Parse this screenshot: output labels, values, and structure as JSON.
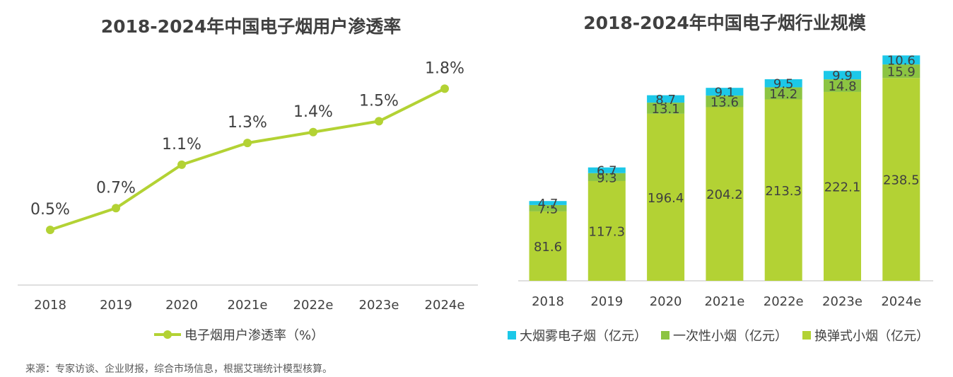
{
  "source_note": "来源：专家访谈、企业财报，综合市场信息，根据艾瑞统计模型核算。",
  "chart_data": [
    {
      "type": "line",
      "title": "2018-2024年中国电子烟用户渗透率",
      "categories": [
        "2018",
        "2019",
        "2020",
        "2021e",
        "2022e",
        "2023e",
        "2024e"
      ],
      "series": [
        {
          "name": "电子烟用户渗透率（%）",
          "values": [
            0.5,
            0.7,
            1.1,
            1.3,
            1.4,
            1.5,
            1.8
          ],
          "labels": [
            "0.5%",
            "0.7%",
            "1.1%",
            "1.3%",
            "1.4%",
            "1.5%",
            "1.8%"
          ],
          "color": "#b3d234"
        }
      ],
      "xlabel": "",
      "ylabel": "",
      "grid": false,
      "legend_position": "bottom"
    },
    {
      "type": "bar",
      "stacked": true,
      "title": "2018-2024年中国电子烟行业规模",
      "categories": [
        "2018",
        "2019",
        "2020",
        "2021e",
        "2022e",
        "2023e",
        "2024e"
      ],
      "series": [
        {
          "name": "换弹式小烟（亿元）",
          "values": [
            81.6,
            117.3,
            196.4,
            204.2,
            213.3,
            222.1,
            238.5
          ],
          "color": "#b3d234"
        },
        {
          "name": "一次性小烟（亿元）",
          "values": [
            7.5,
            9.3,
            13.1,
            13.6,
            14.2,
            14.8,
            15.9
          ],
          "color": "#8cc442"
        },
        {
          "name": "大烟雾电子烟（亿元）",
          "values": [
            4.7,
            6.7,
            8.7,
            9.1,
            9.5,
            9.9,
            10.6
          ],
          "color": "#1cc8e8"
        }
      ],
      "legend_order": [
        "大烟雾电子烟（亿元）",
        "一次性小烟（亿元）",
        "换弹式小烟（亿元）"
      ],
      "xlabel": "",
      "ylabel": "",
      "grid": false,
      "legend_position": "bottom"
    }
  ]
}
